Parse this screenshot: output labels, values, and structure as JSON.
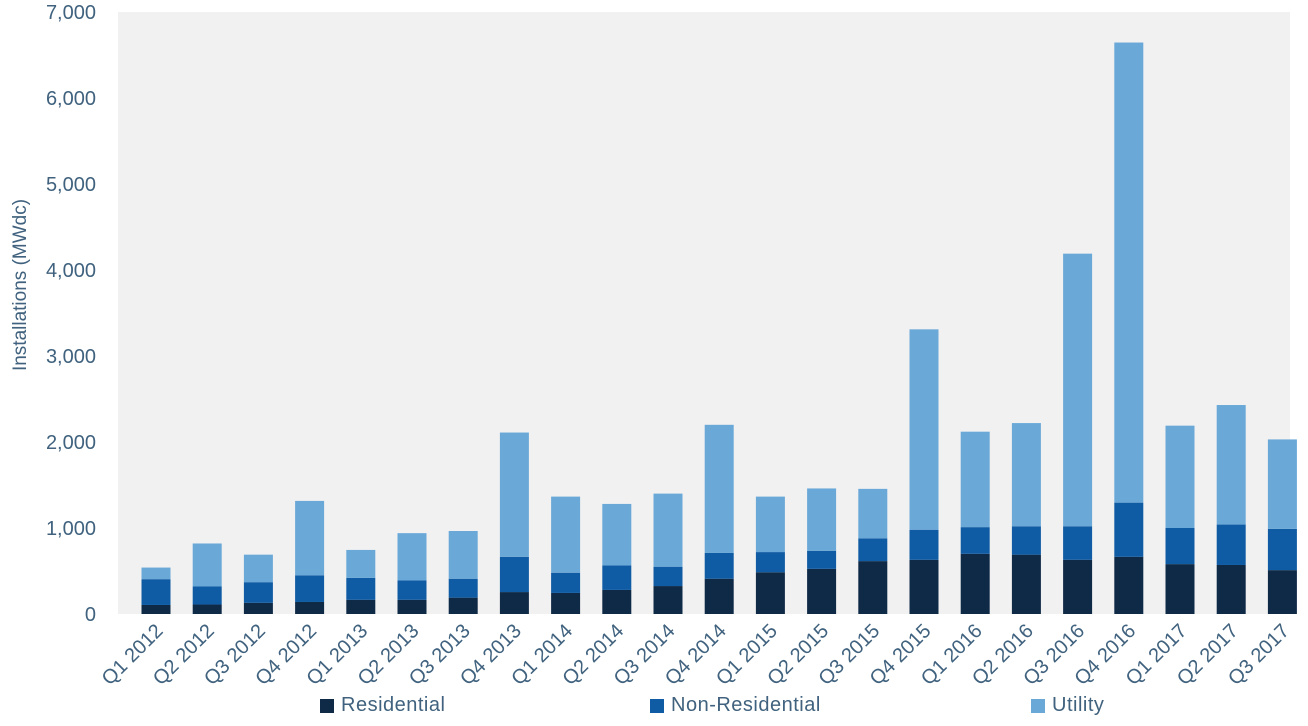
{
  "chart_data": {
    "type": "bar",
    "stacked": true,
    "title": "",
    "xlabel": "",
    "ylabel": "Installations (MWdc)",
    "ylim": [
      0,
      7000
    ],
    "yticks": [
      0,
      1000,
      2000,
      3000,
      4000,
      5000,
      6000,
      7000
    ],
    "ytick_labels": [
      "0",
      "1,000",
      "2,000",
      "3,000",
      "4,000",
      "5,000",
      "6,000",
      "7,000"
    ],
    "grid": false,
    "legend_position": "bottom",
    "categories": [
      "Q1 2012",
      "Q2 2012",
      "Q3 2012",
      "Q4 2012",
      "Q1 2013",
      "Q2 2013",
      "Q3 2013",
      "Q4 2013",
      "Q1 2014",
      "Q2 2014",
      "Q3 2014",
      "Q4 2014",
      "Q1 2015",
      "Q2 2015",
      "Q3 2015",
      "Q4 2015",
      "Q1 2016",
      "Q2 2016",
      "Q3 2016",
      "Q4 2016",
      "Q1 2017",
      "Q2 2017",
      "Q3 2017"
    ],
    "series": [
      {
        "name": "Residential",
        "color": "#0f2a47",
        "values": [
          105,
          110,
          130,
          140,
          165,
          165,
          190,
          255,
          245,
          280,
          325,
          410,
          485,
          525,
          615,
          630,
          700,
          690,
          630,
          665,
          580,
          570,
          510
        ]
      },
      {
        "name": "Non-Residential",
        "color": "#0f5ba4",
        "values": [
          300,
          210,
          240,
          310,
          255,
          225,
          220,
          410,
          235,
          285,
          225,
          300,
          235,
          210,
          265,
          350,
          310,
          330,
          390,
          630,
          420,
          470,
          480
        ]
      },
      {
        "name": "Utility",
        "color": "#6aa8d8",
        "values": [
          135,
          500,
          320,
          865,
          325,
          550,
          555,
          1445,
          885,
          715,
          850,
          1490,
          645,
          725,
          575,
          2330,
          1110,
          1200,
          3170,
          5350,
          1190,
          1390,
          1040
        ]
      }
    ]
  },
  "plot_area_color": "#f1f1f1"
}
